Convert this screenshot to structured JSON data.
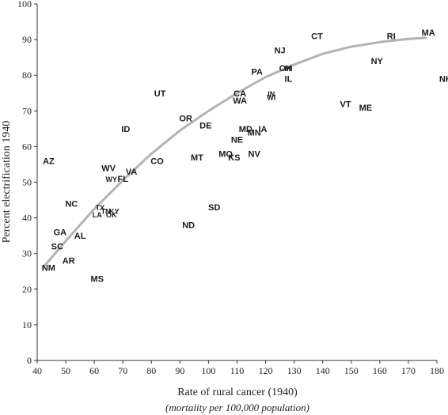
{
  "chart_data": {
    "type": "scatter",
    "xlabel": "Rate of rural cancer (1940)",
    "xlabel_sub": "(mortality per 100,000 population)",
    "ylabel": "Percent electrification 1940",
    "xlim": [
      40,
      180
    ],
    "ylim": [
      0,
      100
    ],
    "xticks": [
      40,
      50,
      60,
      70,
      80,
      90,
      100,
      110,
      120,
      130,
      140,
      150,
      160,
      170,
      180
    ],
    "yticks": [
      0,
      10,
      20,
      30,
      40,
      50,
      60,
      70,
      80,
      90,
      100
    ],
    "grid": false,
    "legend": "none",
    "point_color": "#1a1a1a",
    "trend_color": "#b3b3b3",
    "points": [
      {
        "label": "AZ",
        "x": 44,
        "y": 56
      },
      {
        "label": "NM",
        "x": 44,
        "y": 26
      },
      {
        "label": "AR",
        "x": 51,
        "y": 28
      },
      {
        "label": "SC",
        "x": 47,
        "y": 32
      },
      {
        "label": "GA",
        "x": 48,
        "y": 36
      },
      {
        "label": "AL",
        "x": 55,
        "y": 35
      },
      {
        "label": "NC",
        "x": 52,
        "y": 44
      },
      {
        "label": "MS",
        "x": 61,
        "y": 23
      },
      {
        "label": "TX",
        "x": 62,
        "y": 43
      },
      {
        "label": "LA",
        "x": 61,
        "y": 41
      },
      {
        "label": "TN",
        "x": 64,
        "y": 42
      },
      {
        "label": "KY",
        "x": 67,
        "y": 42
      },
      {
        "label": "OK",
        "x": 66,
        "y": 41
      },
      {
        "label": "WV",
        "x": 65,
        "y": 54
      },
      {
        "label": "WY",
        "x": 66,
        "y": 51
      },
      {
        "label": "FL",
        "x": 70,
        "y": 51
      },
      {
        "label": "VA",
        "x": 73,
        "y": 53
      },
      {
        "label": "CO",
        "x": 82,
        "y": 56
      },
      {
        "label": "ID",
        "x": 71,
        "y": 65
      },
      {
        "label": "UT",
        "x": 83,
        "y": 75
      },
      {
        "label": "OR",
        "x": 92,
        "y": 68
      },
      {
        "label": "ND",
        "x": 93,
        "y": 38
      },
      {
        "label": "SD",
        "x": 102,
        "y": 43
      },
      {
        "label": "MT",
        "x": 96,
        "y": 57
      },
      {
        "label": "DE",
        "x": 99,
        "y": 66
      },
      {
        "label": "MO",
        "x": 106,
        "y": 58
      },
      {
        "label": "KS",
        "x": 109,
        "y": 57
      },
      {
        "label": "NE",
        "x": 110,
        "y": 62
      },
      {
        "label": "MD",
        "x": 113,
        "y": 65
      },
      {
        "label": "MN",
        "x": 116,
        "y": 64
      },
      {
        "label": "IA",
        "x": 119,
        "y": 65
      },
      {
        "label": "NV",
        "x": 116,
        "y": 58
      },
      {
        "label": "CA",
        "x": 111,
        "y": 75
      },
      {
        "label": "WA",
        "x": 111,
        "y": 73
      },
      {
        "label": "IN",
        "x": 122,
        "y": 75
      },
      {
        "label": "WI",
        "x": 122,
        "y": 74
      },
      {
        "label": "PA",
        "x": 117,
        "y": 81
      },
      {
        "label": "NJ",
        "x": 125,
        "y": 87
      },
      {
        "label": "OH",
        "x": 127,
        "y": 82
      },
      {
        "label": "MI",
        "x": 128,
        "y": 82
      },
      {
        "label": "IL",
        "x": 128,
        "y": 79
      },
      {
        "label": "CT",
        "x": 138,
        "y": 91
      },
      {
        "label": "VT",
        "x": 148,
        "y": 72
      },
      {
        "label": "ME",
        "x": 155,
        "y": 71
      },
      {
        "label": "NY",
        "x": 159,
        "y": 84
      },
      {
        "label": "RI",
        "x": 164,
        "y": 91
      },
      {
        "label": "MA",
        "x": 177,
        "y": 92
      },
      {
        "label": "NH",
        "x": 183,
        "y": 79
      }
    ],
    "trend": {
      "x": [
        42,
        50,
        60,
        70,
        80,
        90,
        100,
        110,
        120,
        130,
        140,
        150,
        160,
        170,
        176
      ],
      "y": [
        26,
        33.5,
        42.5,
        50.5,
        58,
        64.5,
        70,
        75,
        79.5,
        83,
        86,
        88,
        89.3,
        90.2,
        90.5
      ]
    }
  }
}
